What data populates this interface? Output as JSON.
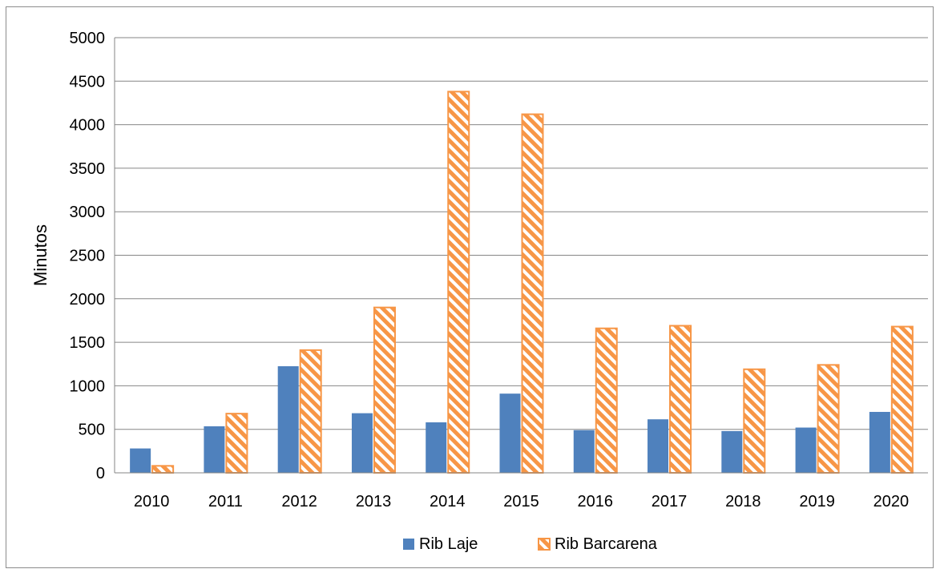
{
  "chart_data": {
    "type": "bar",
    "categories": [
      "2010",
      "2011",
      "2012",
      "2013",
      "2014",
      "2015",
      "2016",
      "2017",
      "2018",
      "2019",
      "2020"
    ],
    "series": [
      {
        "name": "Rib Laje",
        "values": [
          280,
          535,
          1225,
          685,
          580,
          910,
          490,
          615,
          480,
          520,
          700
        ],
        "color": "#4f81bd",
        "pattern": "solid"
      },
      {
        "name": "Rib Barcarena",
        "values": [
          80,
          680,
          1410,
          1900,
          4380,
          4120,
          1660,
          1690,
          1190,
          1240,
          1680
        ],
        "color": "#f79646",
        "pattern": "diagonal-hatch"
      }
    ],
    "xlabel": "",
    "ylabel": "Minutos",
    "ylim": [
      0,
      5000
    ],
    "yticks": [
      0,
      500,
      1000,
      1500,
      2000,
      2500,
      3000,
      3500,
      4000,
      4500,
      5000
    ],
    "grid": true,
    "legend_position": "bottom"
  }
}
